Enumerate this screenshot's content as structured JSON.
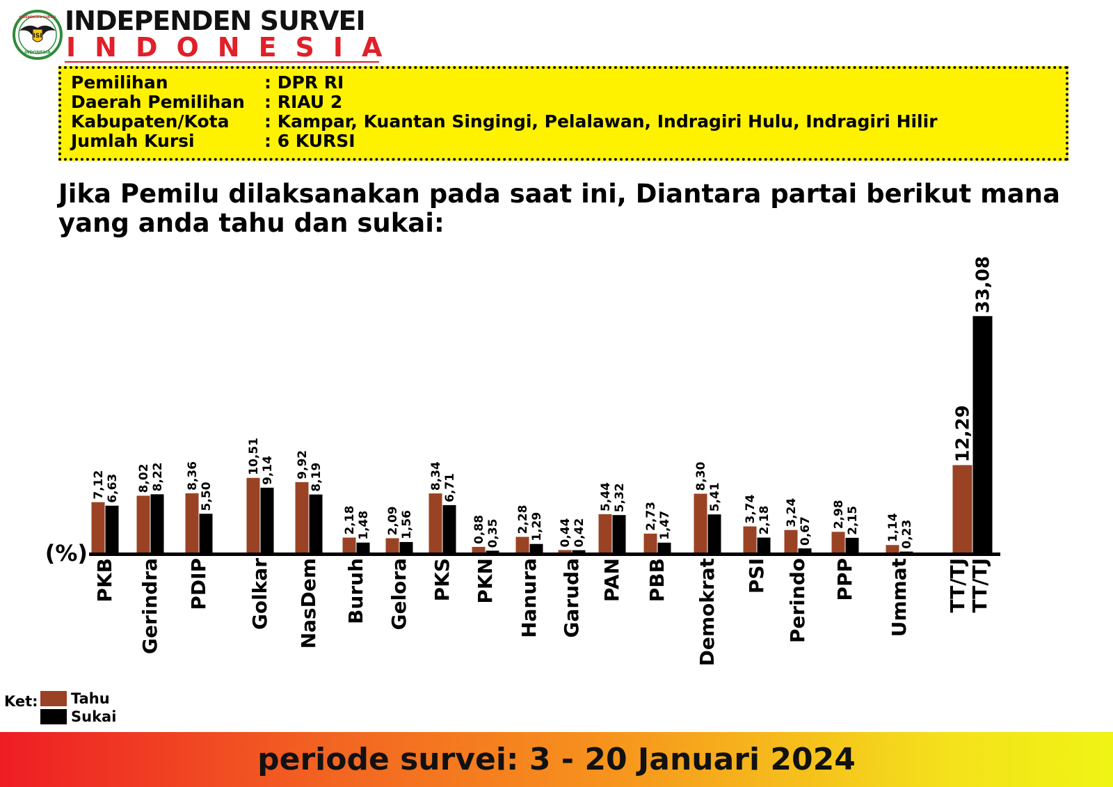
{
  "brand": {
    "name_line1": "INDEPENDEN SURVEI",
    "name_line2": "INDONESIA",
    "logo_top_text": "INDEPENDEN SURVEI",
    "logo_center_text": "ISI",
    "logo_bottom_text": "INDONESIA"
  },
  "info": {
    "rows": [
      {
        "label": "Pemilihan",
        "value": ": DPR RI"
      },
      {
        "label": "Daerah Pemilihan",
        "value": ": RIAU 2"
      },
      {
        "label": "Kabupaten/Kota",
        "value": ": Kampar, Kuantan Singingi, Pelalawan, Indragiri Hulu, Indragiri Hilir"
      },
      {
        "label": "Jumlah Kursi",
        "value": ": 6 KURSI"
      }
    ]
  },
  "question": "Jika Pemilu dilaksanakan pada saat ini, Diantara partai berikut mana yang anda tahu dan sukai:",
  "chart_data": {
    "type": "bar",
    "ylabel": "(%)",
    "categories": [
      "PKB",
      "Gerindra",
      "PDIP",
      "Golkar",
      "NasDem",
      "Buruh",
      "Gelora",
      "PKS",
      "PKN",
      "Hanura",
      "Garuda",
      "PAN",
      "PBB",
      "Demokrat",
      "PSI",
      "Perindo",
      "PPP",
      "Ummat",
      "TT/TJ"
    ],
    "series": [
      {
        "name": "Tahu",
        "color": "#9a4324",
        "values": [
          7.12,
          8.02,
          8.36,
          10.51,
          9.92,
          2.18,
          2.09,
          8.34,
          0.88,
          2.28,
          0.44,
          5.44,
          2.73,
          8.3,
          3.74,
          3.24,
          2.98,
          1.14,
          12.29
        ],
        "labels": [
          "7,12",
          "8,02",
          "8,36",
          "10,51",
          "9,92",
          "2,18",
          "2,09",
          "8,34",
          "0,88",
          "2,28",
          "0,44",
          "5,44",
          "2,73",
          "8,30",
          "3,74",
          "3,24",
          "2,98",
          "1,14",
          "12,29"
        ]
      },
      {
        "name": "Sukai",
        "color": "#000000",
        "values": [
          6.63,
          8.22,
          5.5,
          9.14,
          8.19,
          1.48,
          1.56,
          6.71,
          0.35,
          1.29,
          0.42,
          5.32,
          1.47,
          5.41,
          2.18,
          0.67,
          2.15,
          0.23,
          33.08
        ],
        "labels": [
          "6,63",
          "8,22",
          "5,50",
          "9,14",
          "8,19",
          "1,48",
          "1,56",
          "6,71",
          "0,35",
          "1,29",
          "0,42",
          "5,32",
          "1,47",
          "5,41",
          "2,18",
          "0,67",
          "2,15",
          "0,23",
          "33,08"
        ]
      }
    ],
    "extra_labels": {
      "TT/TJ": [
        "TT/TJ",
        "TT/TJ"
      ]
    }
  },
  "legend": {
    "title": "Ket:",
    "items": [
      {
        "label": "Tahu",
        "color": "#9a4324"
      },
      {
        "label": "Sukai",
        "color": "#000000"
      }
    ]
  },
  "footer": {
    "text": "periode survei: 3 - 20 Januari 2024"
  }
}
